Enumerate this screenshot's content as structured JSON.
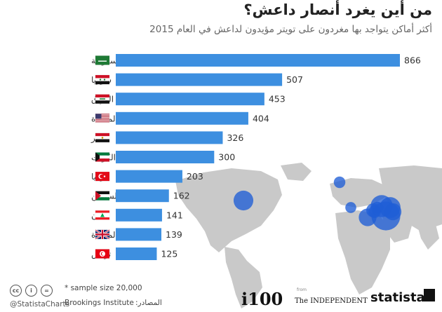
{
  "title": "من أين يغرد أنصار داعش؟",
  "subtitle": "أكثر أماكن يتواجد بها مغردون على تويتر مؤيدون لداعش في العام 2015",
  "footer": {
    "handle": "@StatistaCharts",
    "note": "* sample size 20,000",
    "source_label": "المصادر:",
    "source": "Brookings Institute",
    "cc_icons": [
      "cc",
      "i",
      "="
    ],
    "logos": {
      "i100": "i100",
      "from": "from",
      "independent": "The INDEPENDENT",
      "statista": "statista"
    }
  },
  "colors": {
    "bar": "#3d8fe0",
    "bubble": "#1f5ed6",
    "map_land": "#c9c9c9",
    "text": "#333333"
  },
  "chart_data": {
    "type": "bar",
    "orientation": "horizontal",
    "categories": [
      "السعودية",
      "سوريا",
      "العراق",
      "الولايات المتحدة",
      "مصر",
      "الكويت",
      "تركيا",
      "فلسطين",
      "لبنان",
      "المملكة المتحدة",
      "تونس"
    ],
    "flags": [
      "saudi-arabia-flag",
      "syria-flag",
      "iraq-flag",
      "united-states-flag",
      "egypt-flag",
      "kuwait-flag",
      "turkey-flag",
      "palestine-flag",
      "lebanon-flag",
      "united-kingdom-flag",
      "tunisia-flag"
    ],
    "values": [
      866,
      507,
      453,
      404,
      326,
      300,
      203,
      162,
      141,
      139,
      125
    ],
    "xlim": [
      0,
      866
    ],
    "grid": false,
    "data_labels": true
  }
}
